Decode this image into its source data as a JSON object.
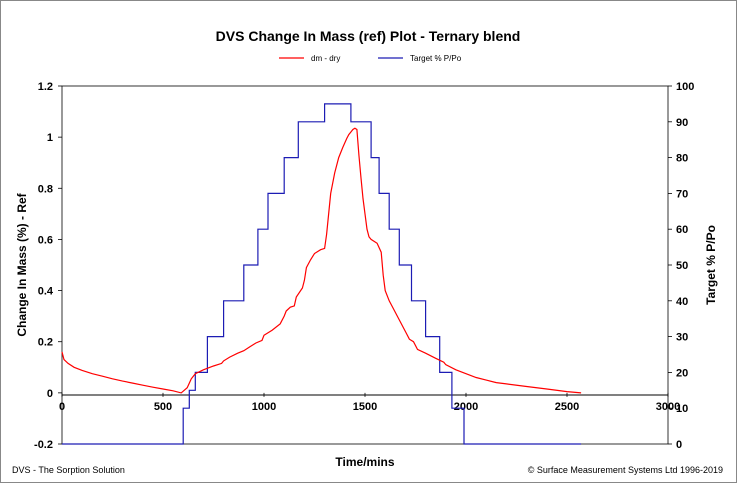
{
  "chart_data": {
    "type": "line",
    "title": "DVS Change In Mass (ref) Plot - Ternary blend",
    "xlabel": "Time/mins",
    "ylabel": "Change In Mass (%) - Ref",
    "y2label": "Target % P/Po",
    "xlim": [
      0,
      3000
    ],
    "ylim": [
      -0.2,
      1.2
    ],
    "y2lim": [
      0,
      100
    ],
    "x_ticks": [
      "0",
      "500",
      "1000",
      "1500",
      "2000",
      "2500",
      "3000"
    ],
    "x_tick_values": [
      0,
      500,
      1000,
      1500,
      2000,
      2500,
      3000
    ],
    "y_ticks": [
      "-0.2",
      "0",
      "0.2",
      "0.4",
      "0.6",
      "0.8",
      "1",
      "1.2"
    ],
    "y_tick_values": [
      -0.2,
      0,
      0.2,
      0.4,
      0.6,
      0.8,
      1.0,
      1.2
    ],
    "y2_ticks": [
      "0",
      "10",
      "20",
      "30",
      "40",
      "50",
      "60",
      "70",
      "80",
      "90",
      "100"
    ],
    "y2_tick_values": [
      0,
      10,
      20,
      30,
      40,
      50,
      60,
      70,
      80,
      90,
      100
    ],
    "legend": [
      "dm - dry",
      "Target % P/Po"
    ],
    "series": [
      {
        "name": "dm - dry",
        "axis": "left",
        "color": "#ff0000",
        "x": [
          0,
          10,
          30,
          60,
          100,
          150,
          200,
          250,
          300,
          350,
          400,
          450,
          500,
          550,
          590,
          620,
          640,
          660,
          700,
          750,
          790,
          800,
          830,
          870,
          900,
          930,
          960,
          990,
          1000,
          1040,
          1080,
          1100,
          1110,
          1130,
          1150,
          1160,
          1190,
          1200,
          1210,
          1230,
          1250,
          1280,
          1300,
          1310,
          1330,
          1350,
          1370,
          1390,
          1410,
          1420,
          1430,
          1440,
          1450,
          1460,
          1470,
          1480,
          1490,
          1500,
          1510,
          1520,
          1530,
          1560,
          1580,
          1590,
          1600,
          1620,
          1640,
          1660,
          1700,
          1720,
          1740,
          1760,
          1800,
          1850,
          1890,
          1900,
          1950,
          2000,
          2050,
          2100,
          2150,
          2200,
          2300,
          2400,
          2500,
          2570
        ],
        "values": [
          0.16,
          0.13,
          0.115,
          0.1,
          0.088,
          0.075,
          0.065,
          0.055,
          0.046,
          0.038,
          0.03,
          0.022,
          0.015,
          0.008,
          0.0,
          0.02,
          0.055,
          0.075,
          0.09,
          0.105,
          0.115,
          0.125,
          0.14,
          0.155,
          0.165,
          0.18,
          0.195,
          0.205,
          0.225,
          0.245,
          0.27,
          0.3,
          0.32,
          0.335,
          0.34,
          0.375,
          0.41,
          0.44,
          0.49,
          0.52,
          0.545,
          0.56,
          0.565,
          0.62,
          0.78,
          0.86,
          0.92,
          0.96,
          0.995,
          1.01,
          1.02,
          1.03,
          1.035,
          1.03,
          0.93,
          0.84,
          0.76,
          0.7,
          0.64,
          0.61,
          0.6,
          0.585,
          0.55,
          0.46,
          0.4,
          0.36,
          0.33,
          0.3,
          0.24,
          0.21,
          0.2,
          0.17,
          0.155,
          0.135,
          0.12,
          0.11,
          0.09,
          0.075,
          0.06,
          0.05,
          0.04,
          0.035,
          0.025,
          0.015,
          0.005,
          0.0
        ]
      },
      {
        "name": "Target % P/Po",
        "axis": "right",
        "color": "#1c1cb4",
        "step": true,
        "x": [
          0,
          600,
          630,
          660,
          720,
          800,
          900,
          970,
          1020,
          1100,
          1170,
          1300,
          1430,
          1530,
          1570,
          1620,
          1670,
          1730,
          1800,
          1870,
          1930,
          1990,
          2570
        ],
        "values": [
          0,
          10,
          15,
          20,
          30,
          40,
          50,
          60,
          70,
          80,
          90,
          95,
          90,
          80,
          70,
          60,
          50,
          40,
          30,
          20,
          10,
          0,
          0
        ]
      }
    ]
  },
  "footer": {
    "left": "DVS - The Sorption Solution",
    "right": "© Surface Measurement Systems Ltd 1996-2019"
  }
}
